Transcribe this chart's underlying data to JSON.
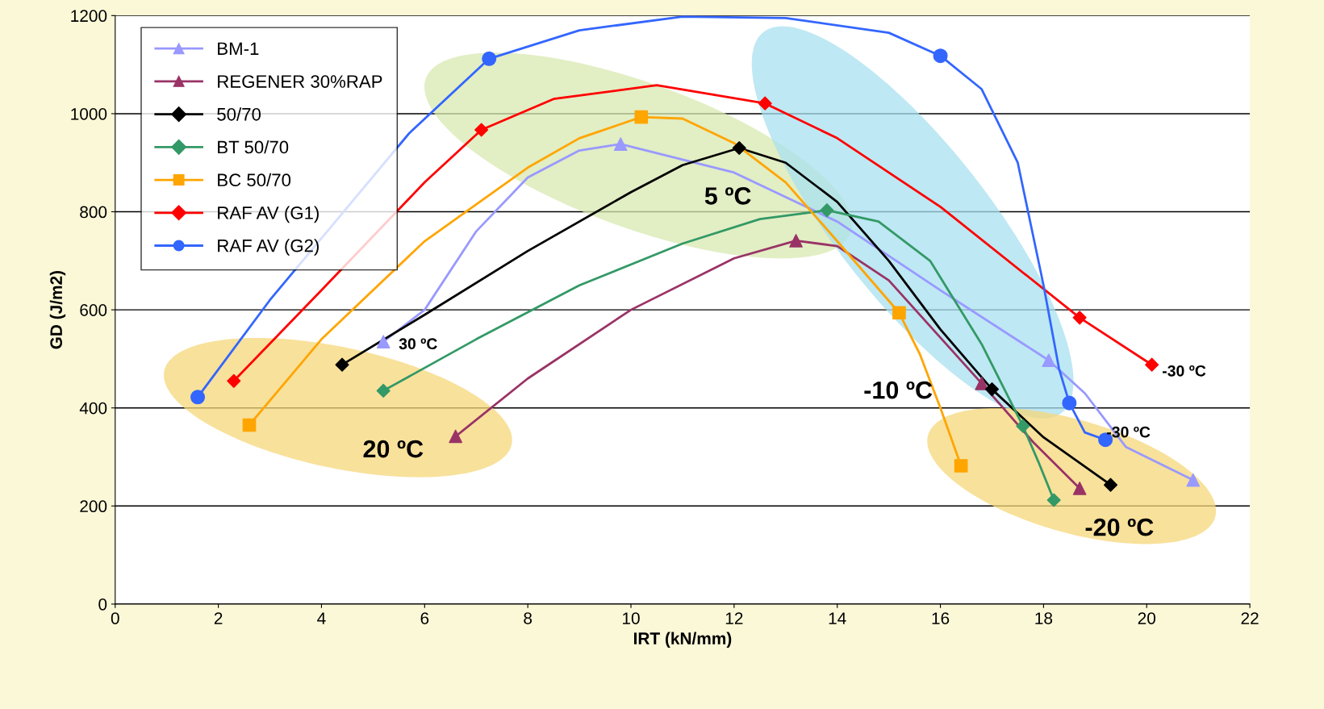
{
  "chart_data": {
    "type": "scatter",
    "xlabel": "IRT (kN/mm)",
    "ylabel": "GD (J/m2)",
    "xlim": [
      0,
      22
    ],
    "xticks": [
      0,
      2,
      4,
      6,
      8,
      10,
      12,
      14,
      16,
      18,
      20,
      22
    ],
    "ylim": [
      0,
      1200
    ],
    "yticks": [
      0,
      200,
      400,
      600,
      800,
      1000,
      1200
    ],
    "grid": "y",
    "legend": "top left",
    "line_style": "solid",
    "series": [
      {
        "type": "line",
        "color": "#9999ff",
        "marker": "none",
        "x": [
          5.2,
          6.0,
          7.0,
          8.0,
          9.0,
          9.8,
          12.0,
          14.0,
          16.0,
          18.1,
          18.8,
          19.6,
          20.9
        ],
        "values": [
          535,
          600,
          760,
          870,
          925,
          938,
          880,
          780,
          640,
          497,
          430,
          320,
          253
        ]
      },
      {
        "type": "line",
        "color": "#993366",
        "marker": "none",
        "x": [
          6.6,
          8.0,
          10.0,
          12.0,
          13.2,
          14.0,
          15.0,
          16.8,
          17.8,
          18.7
        ],
        "values": [
          342,
          460,
          600,
          705,
          741,
          730,
          660,
          450,
          330,
          236
        ]
      },
      {
        "type": "line",
        "color": "#000000",
        "marker": "none",
        "x": [
          4.4,
          6.0,
          8.0,
          10.0,
          11.0,
          12.1,
          13.0,
          14.0,
          15.0,
          16.0,
          17.0,
          18.0,
          19.3
        ],
        "values": [
          488,
          590,
          720,
          840,
          895,
          930,
          900,
          820,
          700,
          560,
          438,
          340,
          243
        ]
      },
      {
        "type": "line",
        "color": "#339966",
        "marker": "none",
        "x": [
          5.2,
          7.0,
          9.0,
          11.0,
          12.5,
          13.8,
          14.8,
          15.8,
          16.8,
          17.6,
          17.9,
          18.2
        ],
        "values": [
          435,
          540,
          650,
          735,
          785,
          803,
          780,
          700,
          530,
          363,
          290,
          212
        ]
      },
      {
        "type": "line",
        "color": "#ffa500",
        "marker": "none",
        "x": [
          2.6,
          4.0,
          6.0,
          8.0,
          9.0,
          10.2,
          11.0,
          12.0,
          13.0,
          14.0,
          15.2,
          15.6,
          16.0,
          16.4
        ],
        "values": [
          365,
          540,
          740,
          890,
          950,
          993,
          990,
          940,
          860,
          740,
          594,
          510,
          400,
          282
        ]
      },
      {
        "type": "line",
        "color": "#ff0000",
        "marker": "none",
        "x": [
          2.3,
          4.0,
          6.0,
          7.1,
          8.5,
          10.5,
          12.6,
          14.0,
          16.0,
          18.7,
          20.1
        ],
        "values": [
          455,
          640,
          860,
          967,
          1030,
          1058,
          1021,
          950,
          810,
          584,
          488
        ]
      },
      {
        "type": "line",
        "color": "#3366ff",
        "marker": "none",
        "x": [
          1.6,
          3.0,
          5.7,
          7.25,
          9.0,
          11.0,
          13.0,
          15.0,
          16.0,
          16.8,
          17.5,
          18.0,
          18.3,
          18.5,
          18.8,
          19.2
        ],
        "values": [
          422,
          620,
          960,
          1112,
          1170,
          1198,
          1195,
          1165,
          1118,
          1050,
          900,
          650,
          480,
          410,
          350,
          335
        ]
      },
      {
        "name": "BM-1",
        "color": "#9999ff",
        "marker": "triangle",
        "x": [
          5.2,
          9.8,
          18.1,
          20.9
        ],
        "values": [
          535,
          938,
          497,
          253
        ]
      },
      {
        "name": "REGENER 30%RAP",
        "color": "#993366",
        "marker": "triangle",
        "x": [
          6.6,
          13.2,
          16.8,
          18.7
        ],
        "values": [
          342,
          741,
          450,
          236
        ]
      },
      {
        "name": "50/70",
        "color": "#000000",
        "marker": "diamond",
        "x": [
          4.4,
          12.1,
          17.0,
          19.3
        ],
        "values": [
          488,
          930,
          438,
          243
        ]
      },
      {
        "name": "BT 50/70",
        "color": "#339966",
        "marker": "diamond",
        "x": [
          5.2,
          13.8,
          17.6,
          18.2
        ],
        "values": [
          435,
          803,
          363,
          212
        ]
      },
      {
        "name": "BC 50/70",
        "color": "#ffa500",
        "marker": "square",
        "x": [
          2.6,
          10.2,
          15.2,
          16.4
        ],
        "values": [
          365,
          993,
          594,
          282
        ]
      },
      {
        "name": "RAF AV (G1)",
        "color": "#ff0000",
        "marker": "diamond",
        "x": [
          2.3,
          7.1,
          12.6,
          18.7,
          20.1
        ],
        "values": [
          455,
          967,
          1021,
          584,
          488
        ]
      },
      {
        "name": "RAF AV (G2)",
        "color": "#3366ff",
        "marker": "circle",
        "x": [
          1.6,
          7.25,
          16.0,
          18.5,
          19.2
        ],
        "values": [
          422,
          1112,
          1118,
          410,
          335
        ]
      }
    ],
    "annotations": [
      "20 ºC",
      "5 ºC",
      "-10 ºC",
      "-20 ºC",
      "30 ºC",
      "-30 ºC",
      "-30 ºC"
    ]
  }
}
